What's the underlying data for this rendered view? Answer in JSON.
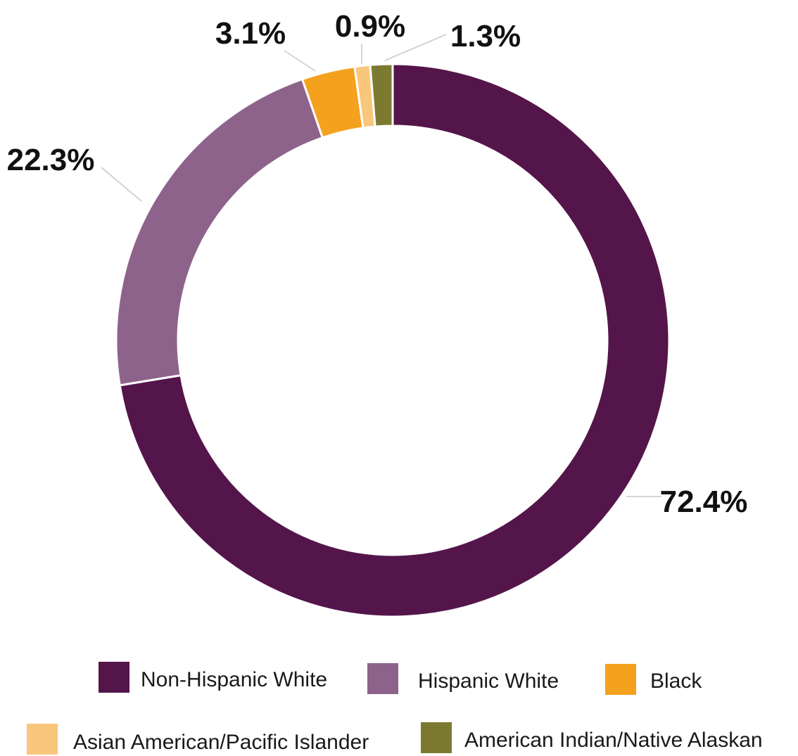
{
  "chart_data": {
    "type": "pie",
    "variant": "donut",
    "title": "",
    "categories": [
      "Non-Hispanic White",
      "Hispanic White",
      "Black",
      "Asian American/Pacific Islander",
      "American Indian/Native Alaskan"
    ],
    "values": [
      72.4,
      22.3,
      3.1,
      0.9,
      1.3
    ],
    "data_labels": [
      "72.4%",
      "22.3%",
      "3.1%",
      "0.9%",
      "1.3%"
    ],
    "colors": [
      "#54154b",
      "#8e638b",
      "#f4a11e",
      "#f8c77c",
      "#7c7a30"
    ],
    "legend_position": "bottom",
    "slice_order": "counterclockwise from top",
    "legend": [
      {
        "label": "Non-Hispanic White",
        "color": "#54154b"
      },
      {
        "label": "Hispanic White",
        "color": "#8e638b"
      },
      {
        "label": "Black",
        "color": "#f4a11e"
      },
      {
        "label": "Asian American/Pacific Islander",
        "color": "#f8c77c"
      },
      {
        "label": "American Indian/Native Alaskan",
        "color": "#7c7a30"
      }
    ]
  }
}
